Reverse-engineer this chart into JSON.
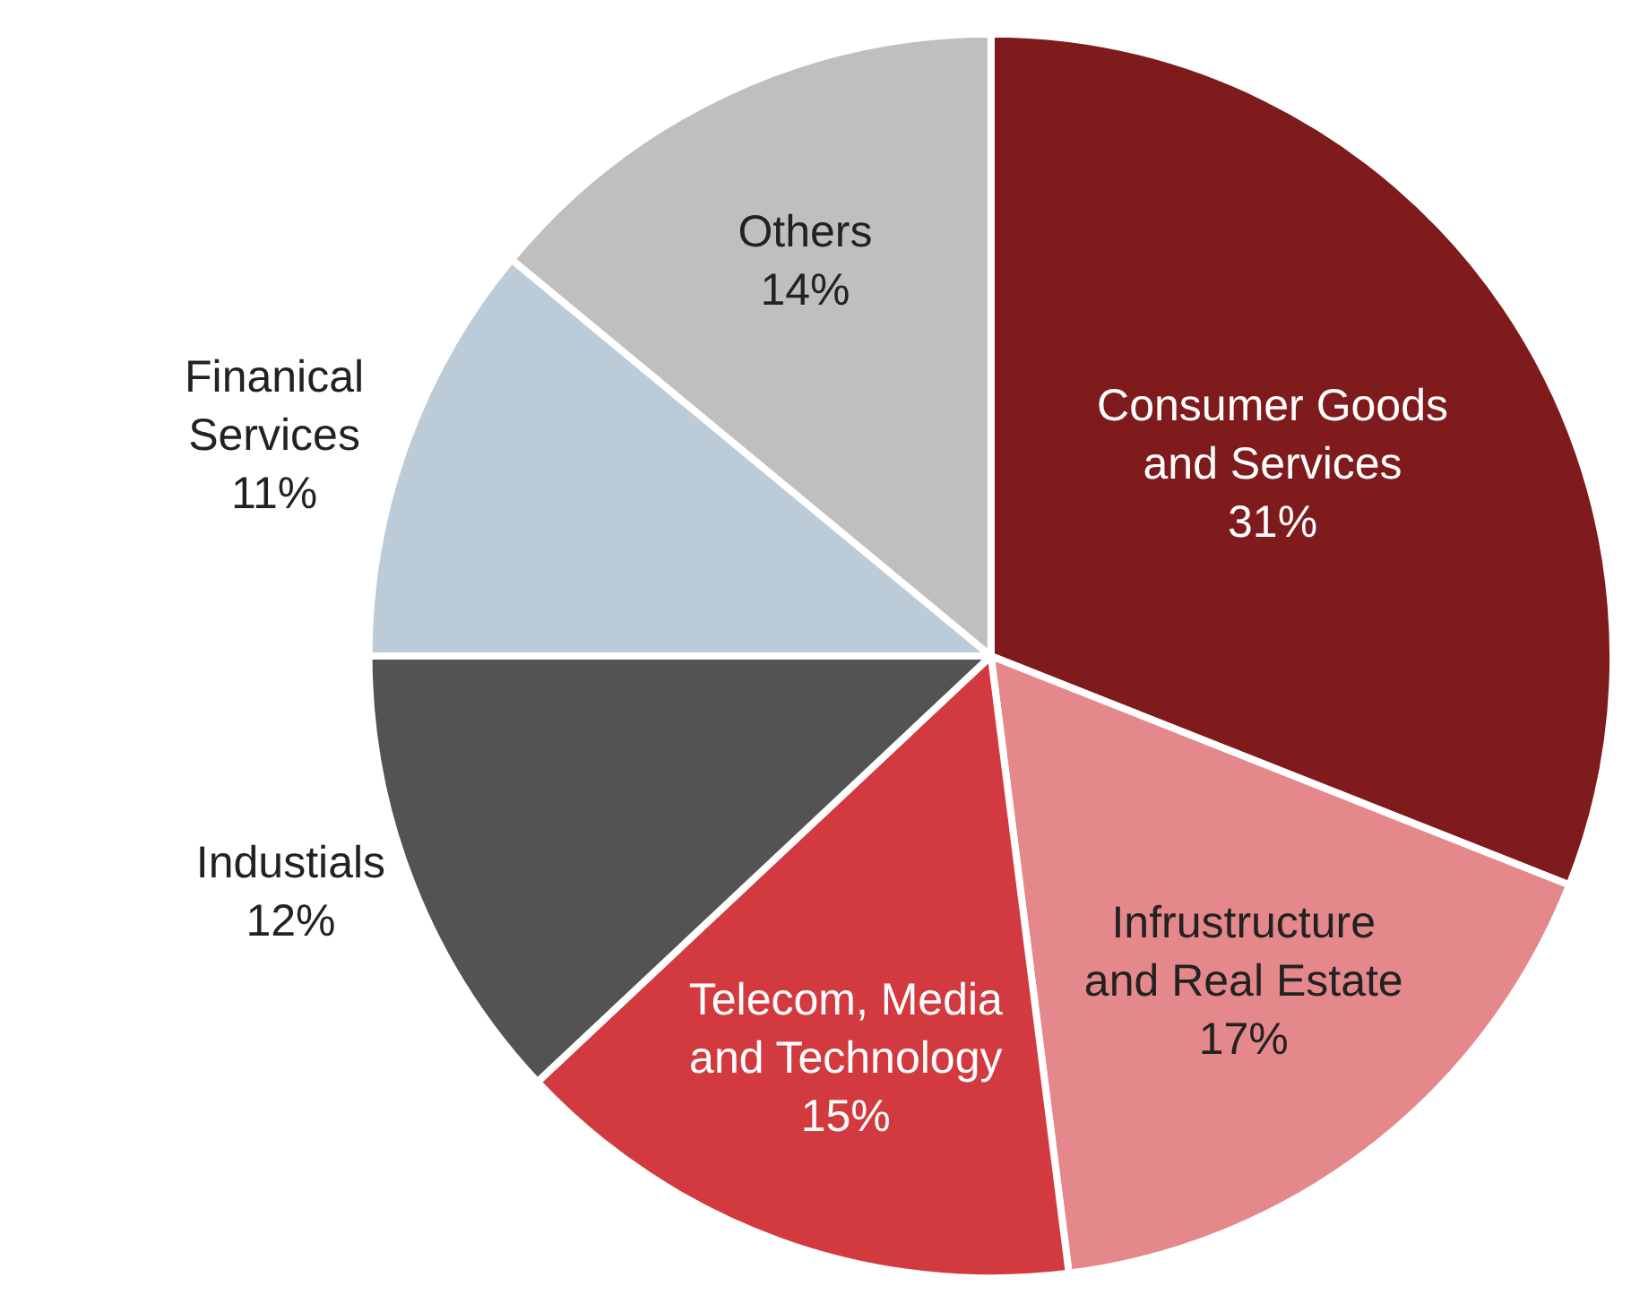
{
  "chart_data": {
    "type": "pie",
    "categories": [
      "Consumer Goods and Services",
      "Infrustructure and Real Estate",
      "Telecom, Media and Technology",
      "Industials",
      "Finanical Services",
      "Others"
    ],
    "values": [
      31,
      17,
      15,
      12,
      11,
      14
    ],
    "value_labels": [
      "31%",
      "17%",
      "15%",
      "12%",
      "11%",
      "14%"
    ],
    "colors": [
      "#7f1a1d",
      "#e5888b",
      "#d33a3f",
      "#535353",
      "#bccbd8",
      "#bfbfbf"
    ],
    "legend": false
  }
}
